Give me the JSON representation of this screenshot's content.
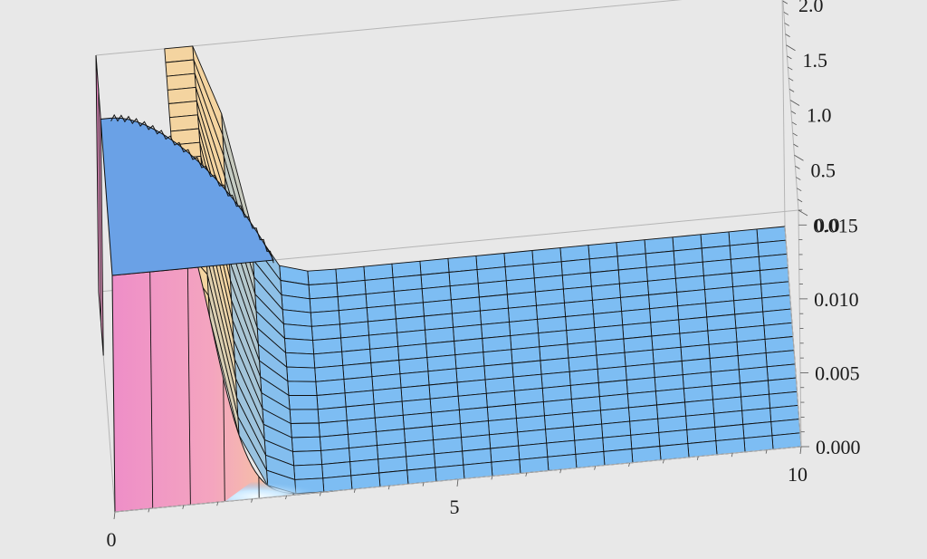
{
  "chart_data": {
    "type": "surface3d",
    "title": "",
    "background": "#e8e8e8",
    "x_axis": {
      "label": "",
      "range": [
        0,
        10
      ],
      "ticks": [
        "0",
        "5",
        "10"
      ]
    },
    "y_axis": {
      "label": "",
      "range": [
        0.0,
        2.0
      ],
      "ticks": [
        "0.0",
        "0.5",
        "1.0",
        "1.5",
        "2.0"
      ]
    },
    "z_axis": {
      "label": "",
      "range": [
        0.0,
        0.016
      ],
      "ticks": [
        "0.000",
        "0.005",
        "0.010",
        "0.015"
      ]
    },
    "surface": {
      "description_shape": "near-cylindrical plateau at z≈0.016 for small x (x<≈1) over part of the y-domain, dropping steeply to z≈0 for x>≈3",
      "plateau_height": 0.016,
      "plateau_x_extent": [
        0,
        1.2
      ],
      "flat_region_height": 0.0,
      "mesh_x_lines": 22,
      "mesh_y_lines": 16
    },
    "colors": {
      "plateau_top": "#6aa1e6",
      "flat_mesh": "#7dbdf3",
      "wall_pink": "#ec8ec6",
      "wall_peach": "#f4c69a",
      "mesh_line": "#111111",
      "box_edge": "#b5b5b5"
    }
  }
}
